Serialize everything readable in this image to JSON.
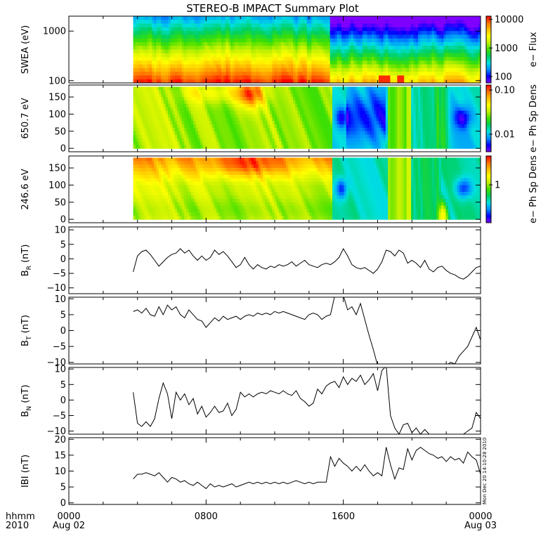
{
  "title": "STEREO-B IMPACT Summary Plot",
  "stamp": "Mon Dec 20 14:10:28 2010",
  "time_axis": {
    "unit_label_top": "hhmm",
    "unit_label_bottom": "2010",
    "tick_values": [
      0,
      8,
      16,
      24
    ],
    "tick_labels_top": [
      "0000",
      "0800",
      "1600",
      "0000"
    ],
    "tick_labels_bottom": [
      "Aug 02",
      "",
      "",
      "Aug 03"
    ],
    "range_hours": [
      0,
      24
    ],
    "data_start_hours": 3.75
  },
  "chart_data": [
    {
      "type": "heatmap",
      "id": "swea",
      "ylabel": "SWEA (eV)",
      "yscale": "log",
      "ylim": [
        90,
        2000
      ],
      "yticks": [
        100,
        1000
      ],
      "ytick_labels": [
        "100",
        "1000"
      ],
      "colorbar": {
        "label": "e− Flux",
        "scale": "log",
        "range": [
          60,
          13000
        ],
        "ticks": [
          100,
          1000,
          10000
        ],
        "tick_labels": [
          "100",
          "1000",
          "10000"
        ]
      }
    },
    {
      "type": "heatmap",
      "id": "pad650",
      "ylabel": "650.7 eV",
      "yscale": "linear",
      "ylim": [
        -10,
        185
      ],
      "yticks": [
        0,
        50,
        100,
        150
      ],
      "ytick_labels": [
        "0",
        "50",
        "100",
        "150"
      ],
      "colorbar": {
        "label": "e− Ph Sp Dens",
        "scale": "log",
        "range": [
          0.004,
          0.13
        ],
        "ticks": [
          0.01,
          0.1
        ],
        "tick_labels": [
          "0.01",
          "0.10"
        ]
      }
    },
    {
      "type": "heatmap",
      "id": "pad246",
      "ylabel": "246.6 eV",
      "yscale": "linear",
      "ylim": [
        -10,
        185
      ],
      "yticks": [
        0,
        50,
        100,
        150
      ],
      "ytick_labels": [
        "0",
        "50",
        "100",
        "150"
      ],
      "colorbar": {
        "label": "e− Ph Sp Dens",
        "scale": "log",
        "range": [
          0.3,
          2.5
        ],
        "ticks": [
          1
        ],
        "tick_labels": [
          "1"
        ]
      }
    },
    {
      "type": "line",
      "id": "br",
      "ylabel_main": "B",
      "ylabel_sub": "R",
      "ylabel_unit": " (nT)",
      "ylim": [
        -12,
        11
      ],
      "yticks": [
        -10,
        -5,
        0,
        5,
        10
      ],
      "ytick_labels": [
        "−10",
        "−5",
        "0",
        "5",
        "10"
      ],
      "x": [
        3.75,
        4.0,
        4.25,
        4.5,
        4.75,
        5.0,
        5.25,
        5.5,
        5.75,
        6.0,
        6.25,
        6.5,
        6.75,
        7.0,
        7.25,
        7.5,
        7.75,
        8.0,
        8.25,
        8.5,
        8.75,
        9.0,
        9.25,
        9.5,
        9.75,
        10.0,
        10.25,
        10.5,
        10.75,
        11.0,
        11.25,
        11.5,
        11.75,
        12.0,
        12.25,
        12.5,
        12.75,
        13.0,
        13.25,
        13.5,
        13.75,
        14.0,
        14.25,
        14.5,
        14.75,
        15.0,
        15.25,
        15.5,
        15.75,
        16.0,
        16.25,
        16.5,
        16.75,
        17.0,
        17.25,
        17.5,
        17.75,
        18.0,
        18.25,
        18.5,
        18.75,
        19.0,
        19.25,
        19.5,
        19.75,
        20.0,
        20.25,
        20.5,
        20.75,
        21.0,
        21.25,
        21.5,
        21.75,
        22.0,
        22.25,
        22.5,
        22.75,
        23.0,
        23.25,
        23.5,
        23.75,
        24.0
      ],
      "values": [
        -4.5,
        1.0,
        2.5,
        3.0,
        1.5,
        -0.5,
        -2.5,
        -1.0,
        0.5,
        1.5,
        2.0,
        3.5,
        2.0,
        3.0,
        1.0,
        -0.5,
        1.0,
        -0.5,
        0.5,
        3.0,
        1.5,
        2.5,
        1.0,
        -1.0,
        -3.0,
        -2.0,
        0.5,
        -2.0,
        -3.5,
        -2.0,
        -3.0,
        -3.5,
        -2.5,
        -3.0,
        -2.0,
        -2.5,
        -2.0,
        -1.0,
        -2.5,
        -1.5,
        -0.5,
        -2.0,
        -2.5,
        -3.0,
        -2.0,
        -1.5,
        -2.0,
        -1.0,
        0.5,
        3.5,
        1.0,
        -2.0,
        -3.0,
        -3.5,
        -3.0,
        -4.0,
        -5.0,
        -3.5,
        -1.0,
        3.0,
        2.5,
        1.0,
        3.0,
        2.0,
        -1.5,
        -0.5,
        -1.5,
        -3.0,
        -0.5,
        -3.5,
        -4.5,
        -3.0,
        -2.5,
        -4.0,
        -5.0,
        -5.5,
        -6.5,
        -7.0,
        -6.0,
        -4.5,
        -3.0,
        -2.5
      ]
    },
    {
      "type": "line",
      "id": "bt",
      "ylabel_main": "B",
      "ylabel_sub": "T",
      "ylabel_unit": " (nT)",
      "ylim": [
        -10.5,
        10.5
      ],
      "yticks": [
        -10,
        -5,
        0,
        5,
        10
      ],
      "ytick_labels": [
        "−10",
        "−5",
        "0",
        "5",
        "10"
      ],
      "x": [
        3.75,
        4.0,
        4.25,
        4.5,
        4.75,
        5.0,
        5.25,
        5.5,
        5.75,
        6.0,
        6.25,
        6.5,
        6.75,
        7.0,
        7.25,
        7.5,
        7.75,
        8.0,
        8.25,
        8.5,
        8.75,
        9.0,
        9.25,
        9.5,
        9.75,
        10.0,
        10.25,
        10.5,
        10.75,
        11.0,
        11.25,
        11.5,
        11.75,
        12.0,
        12.25,
        12.5,
        12.75,
        13.0,
        13.25,
        13.5,
        13.75,
        14.0,
        14.25,
        14.5,
        14.75,
        15.0,
        15.25,
        15.5,
        15.75,
        16.0,
        16.25,
        16.5,
        16.75,
        17.0,
        17.25,
        17.5,
        17.75,
        18.0,
        18.25,
        18.5,
        18.75,
        19.0,
        19.25,
        19.5,
        19.75,
        20.0,
        20.25,
        20.5,
        20.75,
        21.0,
        21.25,
        21.5,
        21.75,
        22.0,
        22.25,
        22.5,
        22.75,
        23.0,
        23.25,
        23.5,
        23.75,
        24.0
      ],
      "values": [
        6.0,
        6.5,
        5.5,
        7.0,
        5.0,
        4.5,
        7.5,
        5.0,
        8.0,
        6.5,
        7.5,
        5.0,
        4.0,
        6.5,
        5.0,
        3.5,
        3.0,
        1.0,
        2.5,
        4.0,
        3.0,
        4.5,
        3.5,
        4.0,
        4.5,
        3.5,
        4.5,
        5.0,
        4.5,
        5.5,
        5.0,
        5.5,
        5.0,
        6.0,
        5.5,
        6.0,
        5.5,
        5.0,
        4.5,
        4.0,
        3.5,
        5.0,
        5.5,
        5.0,
        3.5,
        4.5,
        5.0,
        11.0,
        11.0,
        11.0,
        6.5,
        7.5,
        5.0,
        8.5,
        3.5,
        -1.5,
        -6.0,
        -11.0,
        -11.0,
        -11.0,
        -11.0,
        -11.0,
        -11.0,
        -11.0,
        -11.0,
        -11.0,
        -11.0,
        -11.0,
        -11.0,
        -11.0,
        -11.0,
        -11.0,
        -11.0,
        -11.0,
        -10.0,
        -10.5,
        -8.0,
        -6.5,
        -5.0,
        -2.0,
        1.0,
        -3.0
      ]
    },
    {
      "type": "line",
      "id": "bn",
      "ylabel_main": "B",
      "ylabel_sub": "N",
      "ylabel_unit": " (nT)",
      "ylim": [
        -11,
        10.5
      ],
      "yticks": [
        -10,
        -5,
        0,
        5,
        10
      ],
      "ytick_labels": [
        "−10",
        "−5",
        "0",
        "5",
        "10"
      ],
      "x": [
        3.75,
        4.0,
        4.25,
        4.5,
        4.75,
        5.0,
        5.25,
        5.5,
        5.75,
        6.0,
        6.25,
        6.5,
        6.75,
        7.0,
        7.25,
        7.5,
        7.75,
        8.0,
        8.25,
        8.5,
        8.75,
        9.0,
        9.25,
        9.5,
        9.75,
        10.0,
        10.25,
        10.5,
        10.75,
        11.0,
        11.25,
        11.5,
        11.75,
        12.0,
        12.25,
        12.5,
        12.75,
        13.0,
        13.25,
        13.5,
        13.75,
        14.0,
        14.25,
        14.5,
        14.75,
        15.0,
        15.25,
        15.5,
        15.75,
        16.0,
        16.25,
        16.5,
        16.75,
        17.0,
        17.25,
        17.5,
        17.75,
        18.0,
        18.25,
        18.5,
        18.75,
        19.0,
        19.25,
        19.5,
        19.75,
        20.0,
        20.25,
        20.5,
        20.75,
        21.0,
        21.25,
        21.5,
        21.75,
        22.0,
        22.25,
        22.5,
        22.75,
        23.0,
        23.25,
        23.5,
        23.75,
        24.0
      ],
      "values": [
        2.5,
        -7.5,
        -8.5,
        -7.0,
        -8.5,
        -6.0,
        0.5,
        5.5,
        2.0,
        -6.0,
        2.5,
        0.0,
        2.0,
        -1.5,
        0.5,
        -4.5,
        -2.0,
        -5.5,
        -4.0,
        -2.0,
        -4.0,
        -3.5,
        -1.0,
        -5.0,
        -3.0,
        2.5,
        1.0,
        2.0,
        1.0,
        2.0,
        2.5,
        2.0,
        3.0,
        2.5,
        2.0,
        3.0,
        2.0,
        1.5,
        3.0,
        0.5,
        -0.5,
        -2.0,
        -1.0,
        3.5,
        2.0,
        4.5,
        5.5,
        6.0,
        4.0,
        7.5,
        5.0,
        7.0,
        6.0,
        8.0,
        5.0,
        6.5,
        8.5,
        3.0,
        9.5,
        11.0,
        -5.0,
        -9.0,
        -11.0,
        -8.0,
        -7.5,
        -10.5,
        -9.0,
        -11.0,
        -9.5,
        -11.0,
        -11.0,
        -11.0,
        -11.0,
        -11.0,
        -11.0,
        -11.0,
        -11.0,
        -11.0,
        -10.0,
        -9.0,
        -4.0,
        -6.0
      ]
    },
    {
      "type": "line",
      "id": "bmag",
      "ylabel_main": "IBI",
      "ylabel_sub": "",
      "ylabel_unit": " (nT)",
      "ylim": [
        -0.5,
        20.5
      ],
      "yticks": [
        0,
        5,
        10,
        15,
        20
      ],
      "ytick_labels": [
        "0",
        "5",
        "10",
        "15",
        "20"
      ],
      "x": [
        3.75,
        4.0,
        4.25,
        4.5,
        4.75,
        5.0,
        5.25,
        5.5,
        5.75,
        6.0,
        6.25,
        6.5,
        6.75,
        7.0,
        7.25,
        7.5,
        7.75,
        8.0,
        8.25,
        8.5,
        8.75,
        9.0,
        9.25,
        9.5,
        9.75,
        10.0,
        10.25,
        10.5,
        10.75,
        11.0,
        11.25,
        11.5,
        11.75,
        12.0,
        12.25,
        12.5,
        12.75,
        13.0,
        13.25,
        13.5,
        13.75,
        14.0,
        14.25,
        14.5,
        14.75,
        15.0,
        15.25,
        15.5,
        15.75,
        16.0,
        16.25,
        16.5,
        16.75,
        17.0,
        17.25,
        17.5,
        17.75,
        18.0,
        18.25,
        18.5,
        18.75,
        19.0,
        19.25,
        19.5,
        19.75,
        20.0,
        20.25,
        20.5,
        20.75,
        21.0,
        21.25,
        21.5,
        21.75,
        22.0,
        22.25,
        22.5,
        22.75,
        23.0,
        23.25,
        23.5,
        23.75,
        24.0
      ],
      "values": [
        7.5,
        9.0,
        9.0,
        9.5,
        9.0,
        8.5,
        9.5,
        8.0,
        6.5,
        8.0,
        7.5,
        6.5,
        7.0,
        6.0,
        5.5,
        6.5,
        5.5,
        4.5,
        6.0,
        5.0,
        5.5,
        5.0,
        5.5,
        6.0,
        5.0,
        5.5,
        6.0,
        6.5,
        6.0,
        6.5,
        6.0,
        6.5,
        6.0,
        6.5,
        6.0,
        6.5,
        6.0,
        6.5,
        7.0,
        6.5,
        6.0,
        6.5,
        6.0,
        6.5,
        6.5,
        6.5,
        14.5,
        11.5,
        14.0,
        12.5,
        11.5,
        10.0,
        11.5,
        10.0,
        12.0,
        10.0,
        8.5,
        9.5,
        8.5,
        17.5,
        12.0,
        7.5,
        11.0,
        10.5,
        17.0,
        13.5,
        16.5,
        17.5,
        16.5,
        15.5,
        15.0,
        14.0,
        14.5,
        13.0,
        14.5,
        13.5,
        14.0,
        12.5,
        16.0,
        14.5,
        13.5,
        9.0
      ]
    }
  ]
}
